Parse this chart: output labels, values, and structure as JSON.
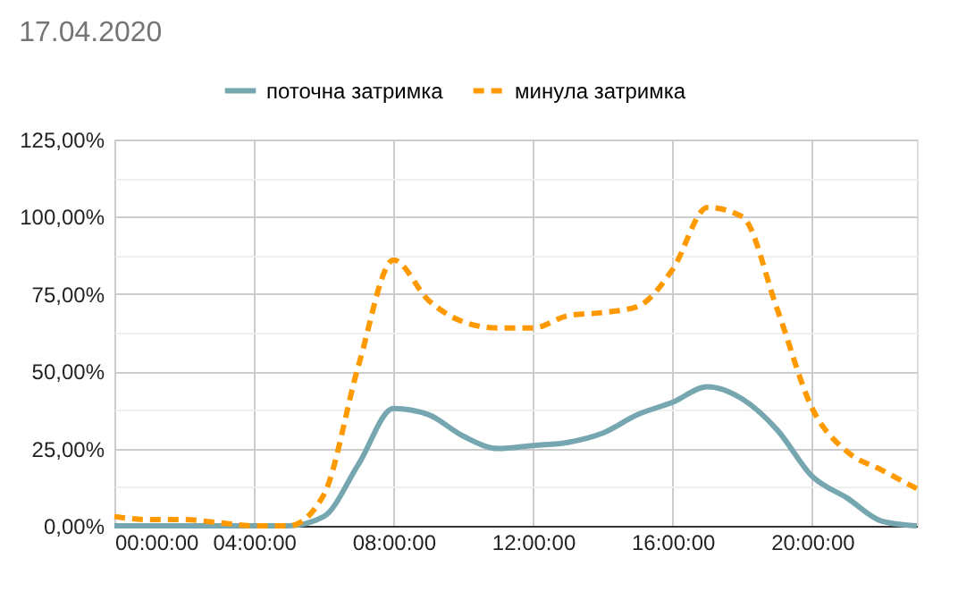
{
  "chart_data": {
    "type": "line",
    "title": "17.04.2020",
    "x": [
      0,
      1,
      2,
      3,
      4,
      5,
      6,
      7,
      8,
      9,
      10,
      11,
      12,
      13,
      14,
      15,
      16,
      17,
      18,
      19,
      20,
      21,
      22,
      23
    ],
    "series": [
      {
        "name": "поточна затримка",
        "color": "#76a7b0",
        "line_style": "solid",
        "values": [
          0,
          0,
          0,
          0,
          0,
          0,
          3,
          20,
          38,
          36,
          29,
          25,
          26,
          27,
          30,
          36,
          40,
          45,
          41,
          31,
          16,
          9,
          1.5,
          0
        ]
      },
      {
        "name": "минула затримка",
        "color": "#ff9900",
        "line_style": "dashed",
        "values": [
          3,
          2,
          2,
          1,
          0,
          0,
          10,
          52,
          86,
          73,
          66,
          64,
          64,
          68,
          69,
          71,
          83,
          103,
          100,
          70,
          38,
          24,
          18,
          12
        ]
      }
    ],
    "xlim": [
      0,
      23
    ],
    "xticks": [
      {
        "value": 0,
        "label": "00:00:00"
      },
      {
        "value": 4,
        "label": "04:00:00"
      },
      {
        "value": 8,
        "label": "08:00:00"
      },
      {
        "value": 12,
        "label": "12:00:00"
      },
      {
        "value": 16,
        "label": "16:00:00"
      },
      {
        "value": 20,
        "label": "20:00:00"
      }
    ],
    "ylim": [
      0,
      125
    ],
    "yticks": [
      {
        "value": 0,
        "label": "0,00%"
      },
      {
        "value": 12.5,
        "label": null
      },
      {
        "value": 25,
        "label": "25,00%"
      },
      {
        "value": 37.5,
        "label": null
      },
      {
        "value": 50,
        "label": "50,00%"
      },
      {
        "value": 62.5,
        "label": null
      },
      {
        "value": 75,
        "label": "75,00%"
      },
      {
        "value": 87.5,
        "label": null
      },
      {
        "value": 100,
        "label": "100,00%"
      },
      {
        "value": 112.5,
        "label": null
      },
      {
        "value": 125,
        "label": "125,00%"
      }
    ],
    "grid": true,
    "legend": "top"
  }
}
